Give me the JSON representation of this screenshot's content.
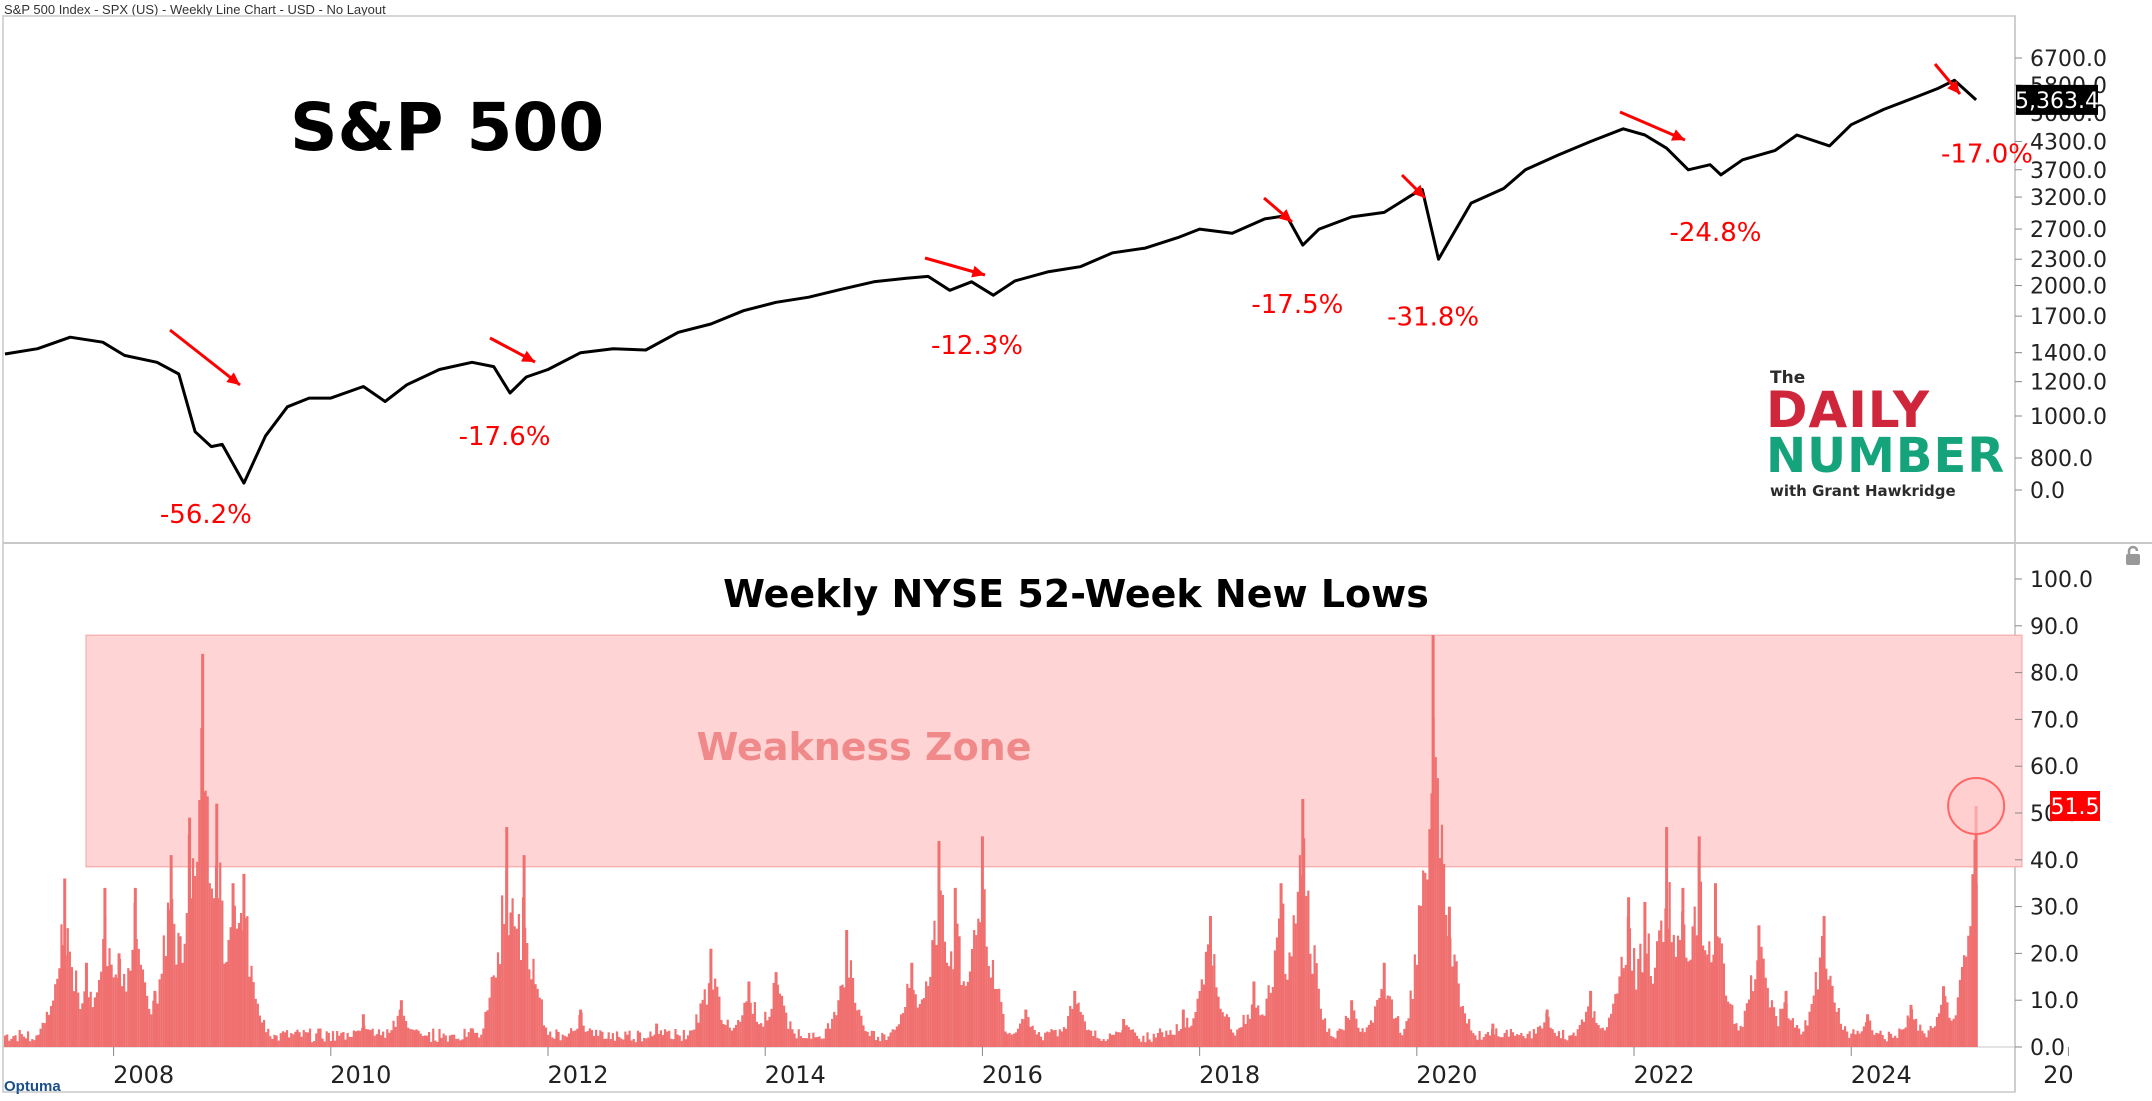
{
  "header": {
    "chart_descriptor": "S&P 500 Index - SPX (US) - Weekly Line Chart - USD - No Layout"
  },
  "footer": {
    "brand": "Optuma"
  },
  "logo": {
    "line1": "The",
    "line2": "DAILY",
    "line3": "NUMBER",
    "line4": "with Grant Hawkridge"
  },
  "colors": {
    "price_line": "#000000",
    "annotation": "#ff0000",
    "bars": "#f07070",
    "zone": "#ffd4d4",
    "last_value_bg": "#000000",
    "lows_value_bg": "#ff0000",
    "logo_red": "#d0263b",
    "logo_green": "#14a37a"
  },
  "icons": {
    "lock": "lock-icon"
  },
  "chart_data": [
    {
      "type": "line",
      "title": "S&P 500",
      "scale": "log",
      "y_tick_labels": [
        "6700.0",
        "5800.0",
        "5000.0",
        "4300.0",
        "3700.0",
        "3200.0",
        "2700.0",
        "2300.0",
        "2000.0",
        "1700.0",
        "1400.0",
        "1200.0",
        "1000.0",
        "800.0",
        "0.0"
      ],
      "last_value": "5,363.4",
      "series": [
        {
          "x": [
            2007.0,
            2007.3,
            2007.6,
            2007.9,
            2008.1,
            2008.4,
            2008.6,
            2008.75,
            2008.9,
            2009.0,
            2009.2,
            2009.4,
            2009.6,
            2009.8,
            2010.0,
            2010.3,
            2010.5,
            2010.7,
            2011.0,
            2011.3,
            2011.5,
            2011.65,
            2011.8,
            2012.0,
            2012.3,
            2012.6,
            2012.9,
            2013.2,
            2013.5,
            2013.8,
            2014.1,
            2014.4,
            2014.7,
            2015.0,
            2015.3,
            2015.5,
            2015.7,
            2015.9,
            2016.1,
            2016.3,
            2016.6,
            2016.9,
            2017.2,
            2017.5,
            2017.8,
            2018.0,
            2018.3,
            2018.6,
            2018.8,
            2018.95,
            2019.1,
            2019.4,
            2019.7,
            2019.95,
            2020.05,
            2020.2,
            2020.5,
            2020.8,
            2021.0,
            2021.3,
            2021.6,
            2021.9,
            2022.1,
            2022.3,
            2022.5,
            2022.7,
            2022.8,
            2023.0,
            2023.3,
            2023.5,
            2023.8,
            2024.0,
            2024.3,
            2024.6,
            2024.8,
            2024.95,
            2025.15
          ],
          "y": [
            1390,
            1430,
            1520,
            1480,
            1380,
            1330,
            1250,
            920,
            850,
            860,
            700,
            900,
            1050,
            1100,
            1100,
            1170,
            1080,
            1180,
            1280,
            1330,
            1300,
            1130,
            1230,
            1280,
            1400,
            1430,
            1420,
            1560,
            1630,
            1750,
            1830,
            1880,
            1960,
            2040,
            2080,
            2100,
            1950,
            2040,
            1900,
            2050,
            2150,
            2210,
            2380,
            2440,
            2580,
            2700,
            2640,
            2850,
            2900,
            2480,
            2700,
            2880,
            2950,
            3230,
            3330,
            2300,
            3100,
            3350,
            3700,
            4000,
            4300,
            4600,
            4450,
            4150,
            3700,
            3800,
            3600,
            3900,
            4100,
            4450,
            4200,
            4700,
            5100,
            5450,
            5700,
            5950,
            5363
          ]
        }
      ],
      "annotations": [
        {
          "label": "-56.2%",
          "x": 2008.85,
          "y": 700
        },
        {
          "label": "-17.6%",
          "x": 2011.6,
          "y": 1060
        },
        {
          "label": "-12.3%",
          "x": 2015.95,
          "y": 1720
        },
        {
          "label": "-17.5%",
          "x": 2018.9,
          "y": 2140
        },
        {
          "label": "-31.8%",
          "x": 2020.15,
          "y": 2000
        },
        {
          "label": "-24.8%",
          "x": 2022.75,
          "y": 3130
        },
        {
          "label": "-17.0%",
          "x": 2025.25,
          "y": 4750
        }
      ]
    },
    {
      "type": "bar",
      "title": "Weekly NYSE 52-Week New Lows",
      "y_tick_labels": [
        "100.0",
        "90.0",
        "80.0",
        "70.0",
        "60.0",
        "50.0",
        "40.0",
        "30.0",
        "20.0",
        "10.0",
        "0.0"
      ],
      "ylim": [
        0,
        100
      ],
      "x_tick_labels": [
        "2008",
        "2010",
        "2012",
        "2014",
        "2016",
        "2018",
        "2020",
        "2022",
        "2024",
        "20"
      ],
      "last_value": "51.5",
      "zone": {
        "label": "Weakness Zone",
        "y_from": 38.5,
        "y_to": 88
      },
      "spikes": [
        {
          "x": 2007.55,
          "y": 36
        },
        {
          "x": 2007.75,
          "y": 18
        },
        {
          "x": 2007.92,
          "y": 34
        },
        {
          "x": 2008.05,
          "y": 20
        },
        {
          "x": 2008.2,
          "y": 34
        },
        {
          "x": 2008.38,
          "y": 12
        },
        {
          "x": 2008.53,
          "y": 41
        },
        {
          "x": 2008.7,
          "y": 49
        },
        {
          "x": 2008.82,
          "y": 84
        },
        {
          "x": 2008.95,
          "y": 52
        },
        {
          "x": 2009.1,
          "y": 35
        },
        {
          "x": 2009.2,
          "y": 37
        },
        {
          "x": 2010.3,
          "y": 7
        },
        {
          "x": 2010.65,
          "y": 10
        },
        {
          "x": 2011.3,
          "y": 4
        },
        {
          "x": 2011.62,
          "y": 47
        },
        {
          "x": 2011.78,
          "y": 41
        },
        {
          "x": 2012.3,
          "y": 8
        },
        {
          "x": 2013.0,
          "y": 5
        },
        {
          "x": 2013.5,
          "y": 21
        },
        {
          "x": 2013.85,
          "y": 14
        },
        {
          "x": 2014.1,
          "y": 16
        },
        {
          "x": 2014.75,
          "y": 25
        },
        {
          "x": 2015.35,
          "y": 18
        },
        {
          "x": 2015.6,
          "y": 44
        },
        {
          "x": 2015.75,
          "y": 34
        },
        {
          "x": 2016.0,
          "y": 45
        },
        {
          "x": 2016.4,
          "y": 8
        },
        {
          "x": 2016.85,
          "y": 12
        },
        {
          "x": 2017.3,
          "y": 6
        },
        {
          "x": 2017.85,
          "y": 8
        },
        {
          "x": 2018.1,
          "y": 28
        },
        {
          "x": 2018.5,
          "y": 14
        },
        {
          "x": 2018.75,
          "y": 35
        },
        {
          "x": 2018.95,
          "y": 53
        },
        {
          "x": 2019.4,
          "y": 10
        },
        {
          "x": 2019.7,
          "y": 18
        },
        {
          "x": 2020.15,
          "y": 88
        },
        {
          "x": 2020.3,
          "y": 30
        },
        {
          "x": 2020.7,
          "y": 5
        },
        {
          "x": 2021.2,
          "y": 8
        },
        {
          "x": 2021.6,
          "y": 12
        },
        {
          "x": 2021.95,
          "y": 32
        },
        {
          "x": 2022.1,
          "y": 31
        },
        {
          "x": 2022.3,
          "y": 47
        },
        {
          "x": 2022.45,
          "y": 34
        },
        {
          "x": 2022.6,
          "y": 45
        },
        {
          "x": 2022.75,
          "y": 35
        },
        {
          "x": 2023.15,
          "y": 26
        },
        {
          "x": 2023.4,
          "y": 12
        },
        {
          "x": 2023.75,
          "y": 28
        },
        {
          "x": 2024.15,
          "y": 7
        },
        {
          "x": 2024.55,
          "y": 9
        },
        {
          "x": 2024.85,
          "y": 13
        },
        {
          "x": 2025.02,
          "y": 12
        },
        {
          "x": 2025.15,
          "y": 51.5
        }
      ]
    }
  ]
}
